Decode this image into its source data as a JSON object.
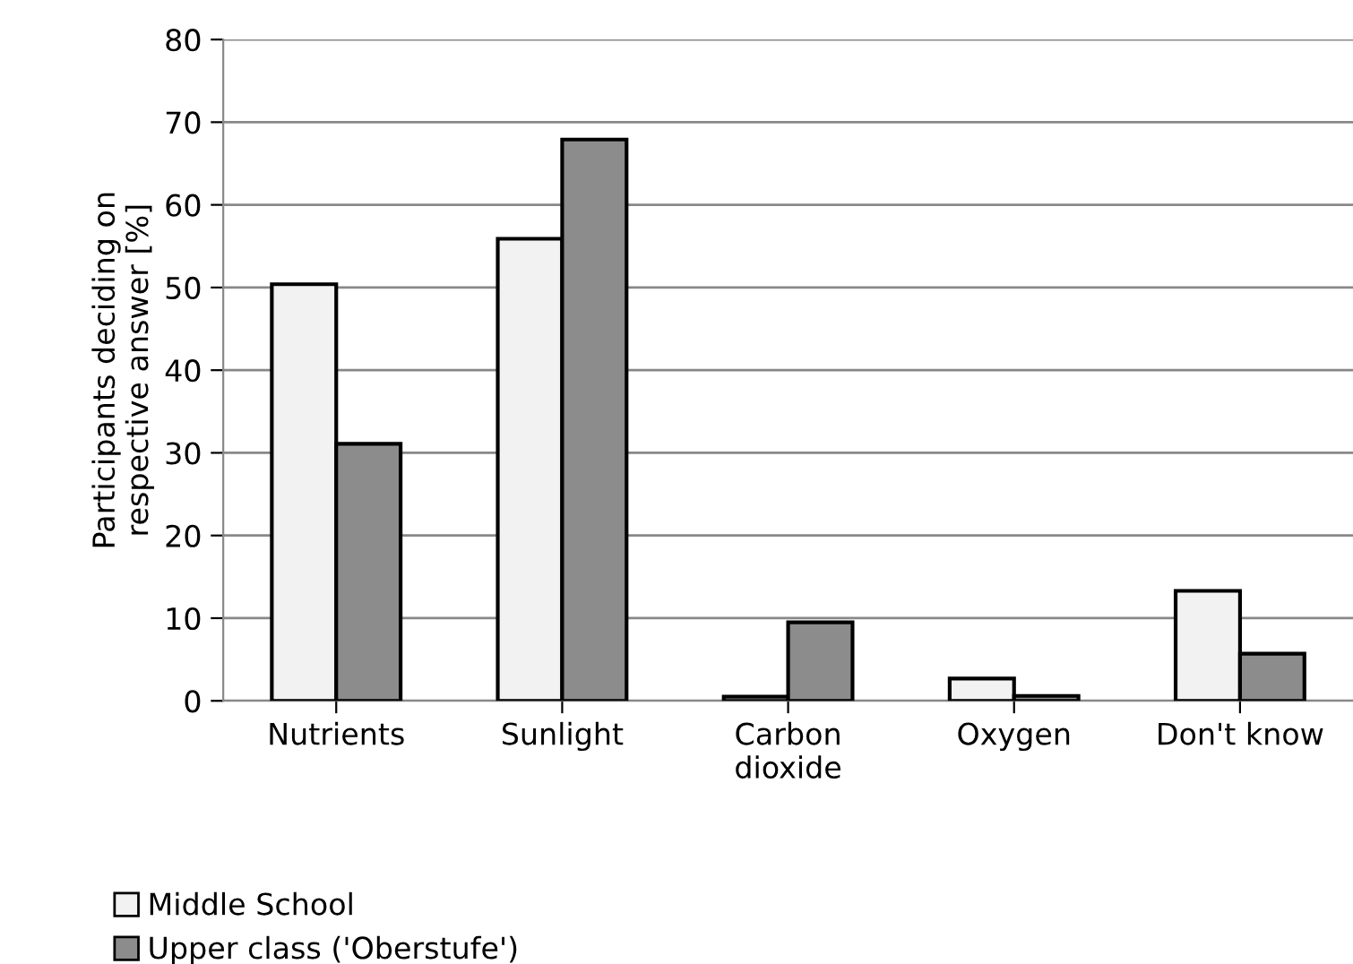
{
  "chart_data": {
    "type": "bar",
    "ylabel": "Participants deciding on\nrespective answer [%]",
    "categories": [
      "Nutrients",
      "Sunlight",
      "Carbon\ndioxide",
      "Oxygen",
      "Don't know"
    ],
    "series": [
      {
        "name": "Middle School",
        "color": "#f2f2f2",
        "values": [
          50.4,
          55.9,
          0.5,
          2.7,
          13.3
        ]
      },
      {
        "name": "Upper class ('Oberstufe')",
        "color": "#8c8c8c",
        "values": [
          31.1,
          67.9,
          9.5,
          0.6,
          5.7
        ]
      }
    ],
    "ylim": [
      0,
      80
    ],
    "yticks": [
      0,
      10,
      20,
      30,
      40,
      50,
      60,
      70,
      80
    ],
    "grid": "y",
    "legend": "bottom left"
  }
}
